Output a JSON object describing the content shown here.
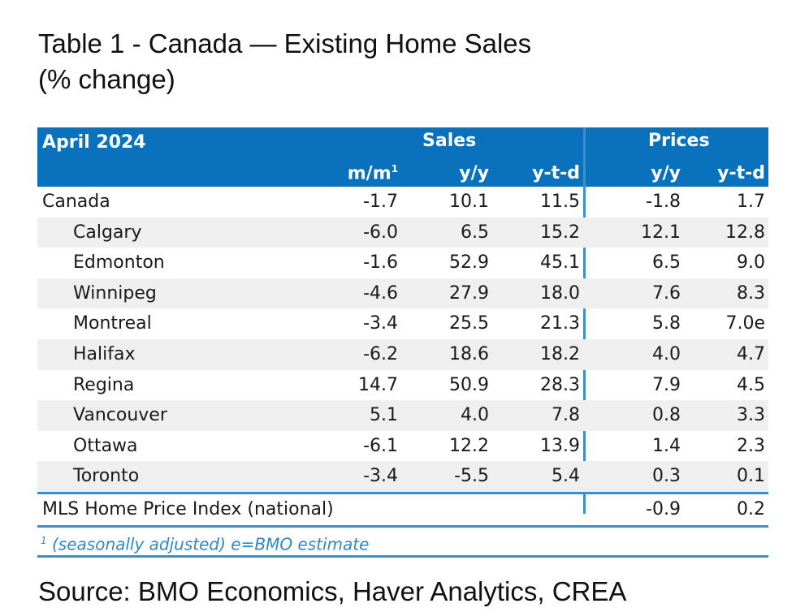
{
  "title_line1": "Table 1 - Canada — Existing Home Sales",
  "title_line2": "(% change)",
  "table": {
    "period": "April 2024",
    "groups": [
      "Sales",
      "Prices"
    ],
    "columns": [
      "m/m",
      "y/y",
      "y-t-d",
      "y/y",
      "y-t-d"
    ],
    "m_m_superscript": "1",
    "rows": [
      {
        "name": "Canada",
        "values": [
          "-1.7",
          "10.1",
          "11.5",
          "-1.8",
          "1.7"
        ]
      },
      {
        "name": "Calgary",
        "values": [
          "-6.0",
          "6.5",
          "15.2",
          "12.1",
          "12.8"
        ]
      },
      {
        "name": "Edmonton",
        "values": [
          "-1.6",
          "52.9",
          "45.1",
          "6.5",
          "9.0"
        ]
      },
      {
        "name": "Winnipeg",
        "values": [
          "-4.6",
          "27.9",
          "18.0",
          "7.6",
          "8.3"
        ]
      },
      {
        "name": "Montreal",
        "values": [
          "-3.4",
          "25.5",
          "21.3",
          "5.8",
          "7.0e"
        ]
      },
      {
        "name": "Halifax",
        "values": [
          "-6.2",
          "18.6",
          "18.2",
          "4.0",
          "4.7"
        ]
      },
      {
        "name": "Regina",
        "values": [
          "14.7",
          "50.9",
          "28.3",
          "7.9",
          "4.5"
        ]
      },
      {
        "name": "Vancouver",
        "values": [
          "5.1",
          "4.0",
          "7.8",
          "0.8",
          "3.3"
        ]
      },
      {
        "name": "Ottawa",
        "values": [
          "-6.1",
          "12.2",
          "13.9",
          "1.4",
          "2.3"
        ]
      },
      {
        "name": "Toronto",
        "values": [
          "-3.4",
          "-5.5",
          "5.4",
          "0.3",
          "0.1"
        ]
      }
    ],
    "mls_row": {
      "name": "MLS Home Price Index (national)",
      "values": [
        "-0.9",
        "0.2"
      ]
    },
    "footnote": "(seasonally adjusted) e=BMO estimate",
    "footnote_marker": "1"
  },
  "source": "Source: BMO Economics, Haver Analytics, CREA"
}
